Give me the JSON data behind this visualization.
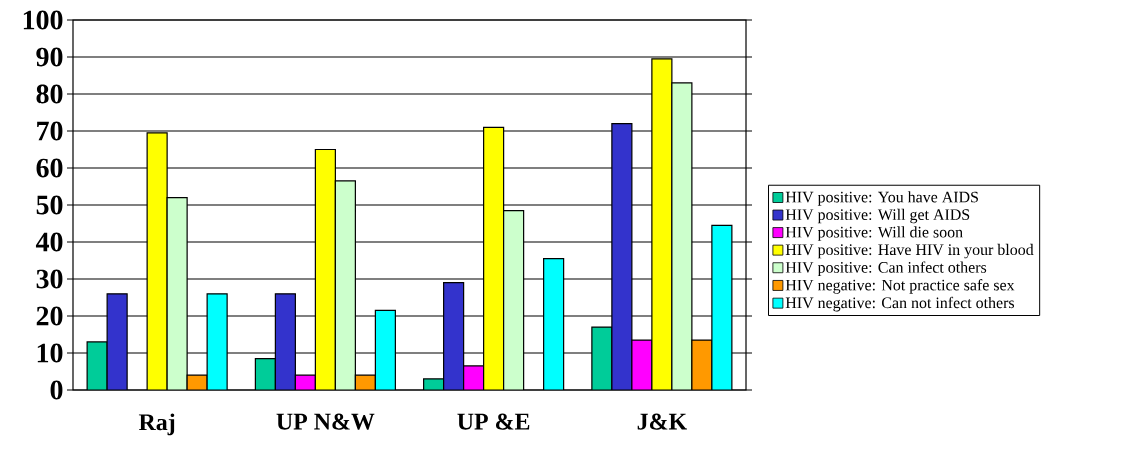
{
  "chart_data": {
    "type": "bar",
    "categories": [
      "Raj",
      "UP N&W",
      "UP &E",
      "J&K"
    ],
    "series": [
      {
        "name": "HIV positive: You have AIDS",
        "color": "#00cc99",
        "values": [
          13,
          8.5,
          3,
          17
        ]
      },
      {
        "name": "HIV positive: Will get AIDS",
        "color": "#3333cc",
        "values": [
          26,
          26,
          29,
          72
        ]
      },
      {
        "name": "HIV positive: Will die soon",
        "color": "#ff00ff",
        "values": [
          null,
          4,
          6.5,
          13.5
        ]
      },
      {
        "name": "HIV positive: Have HIV in your blood",
        "color": "#ffff00",
        "values": [
          69.5,
          65,
          71,
          89.5
        ]
      },
      {
        "name": "HIV positive: Can infect others",
        "color": "#ccffcc",
        "values": [
          52,
          56.5,
          48.5,
          83
        ]
      },
      {
        "name": "HIV negative: Not practice safe sex",
        "color": "#ff9900",
        "values": [
          4,
          4,
          null,
          13.5
        ]
      },
      {
        "name": "HIV negative: Can not infect others",
        "color": "#00ffff",
        "values": [
          26,
          21.5,
          35.5,
          44.5
        ]
      }
    ],
    "ylim": [
      0,
      100
    ],
    "yticks": [
      0,
      10,
      20,
      30,
      40,
      50,
      60,
      70,
      80,
      90,
      100
    ],
    "grid": "y",
    "legend": "right"
  }
}
